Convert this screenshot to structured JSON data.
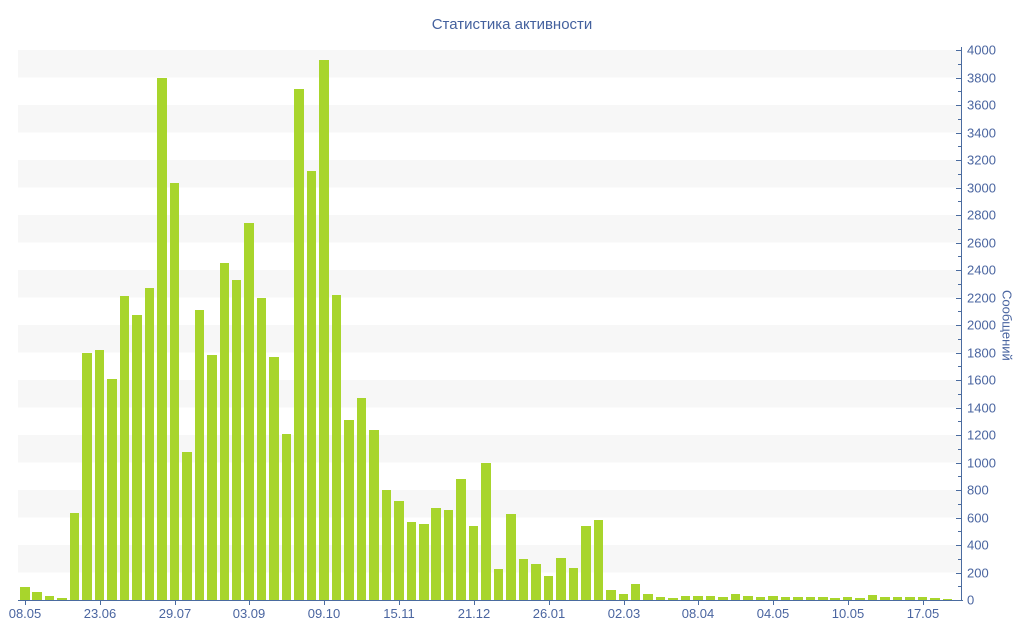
{
  "page": {
    "title": "Статистика активности"
  },
  "chart_data": {
    "type": "bar",
    "title": "Статистика активности",
    "xlabel": "",
    "ylabel": "Сообщений",
    "ylim": [
      0,
      4000
    ],
    "y_tick_step": 200,
    "y_minor_tick_step": 100,
    "legend": false,
    "grid": "alternating horizontal bands of 200 units",
    "x_tick_labels": [
      "08.05",
      "23.06",
      "29.07",
      "03.09",
      "09.10",
      "15.11",
      "21.12",
      "26.01",
      "02.03",
      "08.04",
      "04.05",
      "10.05",
      "17.05"
    ],
    "x_tick_bar_indices": [
      0,
      6,
      12,
      18,
      24,
      30,
      36,
      42,
      48,
      54,
      60,
      66,
      72
    ],
    "values": [
      95,
      55,
      30,
      15,
      630,
      1800,
      1820,
      1610,
      2210,
      2070,
      2270,
      3800,
      3030,
      1075,
      2110,
      1780,
      2450,
      2330,
      2740,
      2200,
      1770,
      1210,
      3720,
      3120,
      3930,
      2220,
      1310,
      1470,
      1240,
      800,
      720,
      570,
      550,
      670,
      655,
      880,
      535,
      995,
      225,
      625,
      295,
      260,
      175,
      305,
      235,
      535,
      580,
      75,
      45,
      115,
      45,
      20,
      15,
      30,
      30,
      30,
      25,
      45,
      30,
      25,
      30,
      20,
      25,
      20,
      20,
      15,
      20,
      15,
      40,
      25,
      20,
      20,
      20,
      15,
      10
    ],
    "colors": {
      "bar": "#a8d52c",
      "axis_line": "#4a6b9f",
      "label_text": "#4a65a0",
      "title_text": "#44619e",
      "band": "#f7f7f7"
    }
  }
}
